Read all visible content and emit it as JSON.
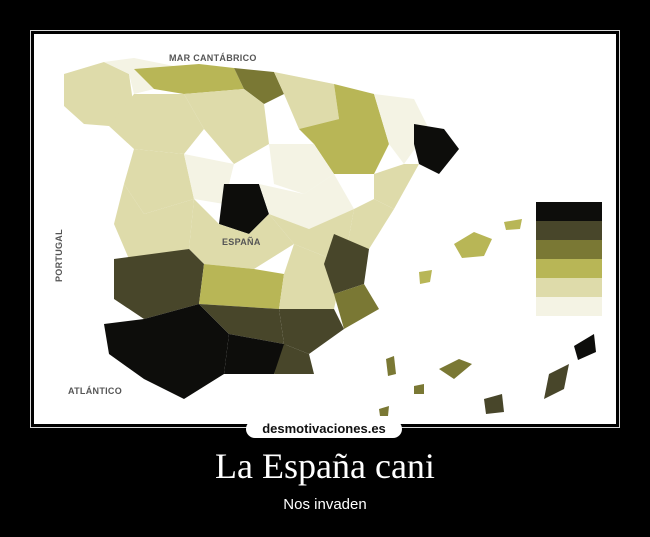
{
  "map": {
    "labels": {
      "sea_north": "MAR CANTÁBRICO",
      "country": "ESPAÑA",
      "ocean": "ATLÁNTICO",
      "neighbor": "PORTUGAL"
    },
    "legend_colors": [
      "#0d0d0b",
      "#48462a",
      "#7a7834",
      "#b8b656",
      "#dedbaa",
      "#f4f3e4"
    ]
  },
  "watermark": "desmotivaciones.es",
  "poster": {
    "title": "La España cani",
    "subtitle": "Nos invaden"
  }
}
